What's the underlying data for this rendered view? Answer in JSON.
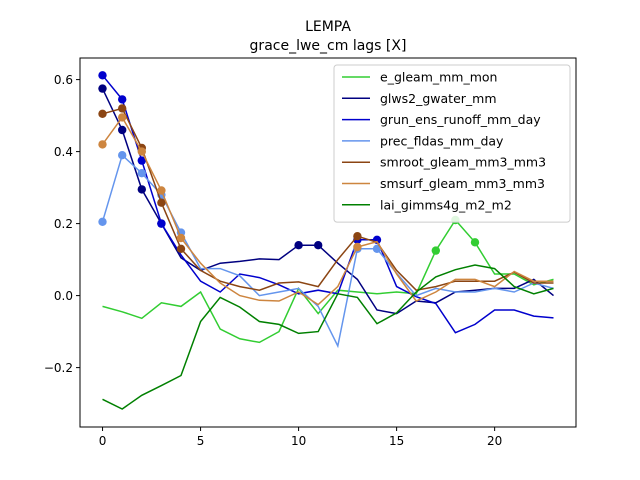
{
  "chart_data": {
    "type": "line",
    "title": "LEMPA",
    "subtitle": "grace_lwe_cm lags [X]",
    "xlabel": "",
    "ylabel": "",
    "xlim": [
      -1.15,
      24.15
    ],
    "ylim": [
      -0.365,
      0.66
    ],
    "xticks": [
      0,
      5,
      10,
      15,
      20
    ],
    "yticks": [
      -0.2,
      0.0,
      0.2,
      0.4,
      0.6
    ],
    "ytick_labels": [
      "−0.2",
      "0.0",
      "0.2",
      "0.4",
      "0.6"
    ],
    "grid": false,
    "legend_position": "upper-right",
    "x": [
      0,
      1,
      2,
      3,
      4,
      5,
      6,
      7,
      8,
      9,
      10,
      11,
      12,
      13,
      14,
      15,
      16,
      17,
      18,
      19,
      20,
      21,
      22,
      23
    ],
    "series": [
      {
        "name": "e_gleam_mm_mon",
        "color": "#32cd32",
        "values": [
          -0.03,
          -0.045,
          -0.063,
          -0.02,
          -0.03,
          0.01,
          -0.093,
          -0.12,
          -0.13,
          -0.1,
          0.02,
          -0.05,
          0.015,
          0.01,
          0.005,
          0.01,
          0.005,
          0.125,
          0.21,
          0.148,
          0.06,
          0.06,
          0.03,
          0.045
        ],
        "markers": [
          17,
          18,
          19
        ]
      },
      {
        "name": "glws2_gwater_mm",
        "color": "#000080",
        "values": [
          0.575,
          0.46,
          0.295,
          0.2,
          0.105,
          0.07,
          0.09,
          0.095,
          0.102,
          0.1,
          0.14,
          0.14,
          0.09,
          0.045,
          -0.04,
          -0.05,
          -0.015,
          -0.02,
          0.01,
          0.015,
          0.02,
          0.02,
          0.045,
          0.0
        ],
        "markers": [
          0,
          1,
          2,
          3,
          10,
          11
        ]
      },
      {
        "name": "grun_ens_runoff_mm_day",
        "color": "#0000cd",
        "values": [
          0.612,
          0.545,
          0.375,
          0.2,
          0.113,
          0.04,
          0.01,
          0.06,
          0.05,
          0.03,
          0.005,
          0.015,
          0.005,
          0.155,
          0.155,
          0.025,
          -0.003,
          -0.022,
          -0.103,
          -0.08,
          -0.04,
          -0.04,
          -0.057,
          -0.062
        ],
        "markers": [
          0,
          1,
          2,
          3,
          13,
          14
        ]
      },
      {
        "name": "prec_fldas_mm_day",
        "color": "#6495ed",
        "values": [
          0.205,
          0.39,
          0.34,
          0.28,
          0.175,
          0.075,
          0.075,
          0.055,
          0.0,
          0.01,
          0.02,
          -0.03,
          -0.14,
          0.13,
          0.13,
          0.062,
          0.0,
          0.02,
          0.01,
          0.01,
          0.02,
          0.01,
          0.035,
          0.02
        ],
        "markers": [
          0,
          1,
          2,
          3,
          4,
          13,
          14
        ]
      },
      {
        "name": "smroot_gleam_mm3_mm3",
        "color": "#8b4513",
        "values": [
          0.505,
          0.52,
          0.41,
          0.258,
          0.13,
          0.07,
          0.04,
          0.025,
          0.015,
          0.035,
          0.038,
          0.025,
          0.1,
          0.165,
          0.148,
          0.07,
          0.015,
          0.025,
          0.04,
          0.04,
          0.04,
          0.065,
          0.035,
          0.035
        ],
        "markers": [
          0,
          1,
          2,
          3,
          4,
          13
        ]
      },
      {
        "name": "smsurf_gleam_mm3_mm3",
        "color": "#cd853f",
        "values": [
          0.42,
          0.495,
          0.4,
          0.292,
          0.16,
          0.09,
          0.035,
          0.0,
          -0.013,
          -0.015,
          0.01,
          -0.025,
          0.025,
          0.135,
          0.15,
          0.06,
          -0.015,
          0.01,
          0.045,
          0.045,
          0.025,
          0.067,
          0.04,
          0.04
        ],
        "markers": [
          0,
          1,
          2,
          3,
          4,
          13
        ]
      },
      {
        "name": "lai_gimms4g_m2_m2",
        "color": "#008000",
        "values": [
          -0.288,
          -0.315,
          -0.277,
          -0.25,
          -0.222,
          -0.072,
          -0.005,
          -0.032,
          -0.072,
          -0.08,
          -0.105,
          -0.1,
          0.005,
          -0.005,
          -0.078,
          -0.048,
          0.01,
          0.052,
          0.072,
          0.085,
          0.075,
          0.025,
          0.005,
          0.02
        ],
        "markers": []
      }
    ]
  }
}
